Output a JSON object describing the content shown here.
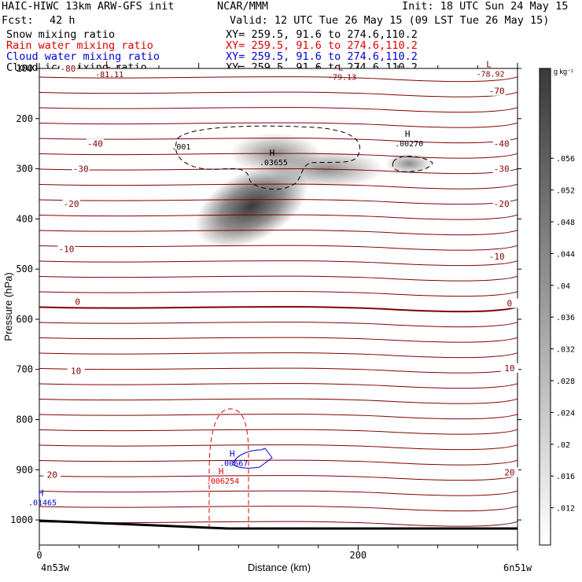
{
  "header": {
    "title_left": "HAIC-HIWC 13km ARW-GFS init",
    "center_tag": "NCAR/MMM",
    "init": "Init: 18 UTC Sun 24 May 15",
    "fcst_label": "Fcst:",
    "fcst_value": "42 h",
    "valid": "Valid: 12 UTC Tue 26 May 15 (09 LST Tue 26 May 15)"
  },
  "fields": [
    {
      "label": "Snow mixing ratio",
      "xy": "XY= 259.5, 91.6 to 274.6,110.2",
      "color": "#000000"
    },
    {
      "label": "Rain water mixing ratio",
      "xy": "XY= 259.5, 91.6 to 274.6,110.2",
      "color": "#e00000"
    },
    {
      "label": "Cloud water mixing ratio",
      "xy": "XY= 259.5, 91.6 to 274.6,110.2",
      "color": "#0000d0"
    },
    {
      "label": "Cloud ice mixing ratio",
      "xy": "XY= 259.5, 91.6 to 274.6,110.2",
      "color": "#000000"
    }
  ],
  "chart_data": {
    "type": "heatmap",
    "xlabel": "Distance (km)",
    "ylabel": "Pressure (hPa)",
    "x_ticks": [
      0,
      200
    ],
    "x_range_km": [
      0,
      300
    ],
    "y_ticks": [
      100,
      200,
      300,
      400,
      500,
      600,
      700,
      800,
      900,
      1000
    ],
    "y_range_hpa": [
      100,
      1050
    ],
    "endpoint_labels": {
      "left": "4n53w",
      "right": "6n51w"
    },
    "colorbar": {
      "unit": "g kg⁻¹",
      "ticks": [
        ".012",
        ".016",
        ".02",
        ".024",
        ".028",
        ".032",
        ".036",
        ".04",
        ".044",
        ".048",
        ".052",
        ".056"
      ],
      "max": 0.06
    },
    "isotherm_labels": [
      {
        "value": "-80",
        "x_km": 18,
        "p_hpa": 100
      },
      {
        "value": "-70",
        "x_km": 287,
        "p_hpa": 145
      },
      {
        "value": "-40",
        "x_km": 35,
        "p_hpa": 250
      },
      {
        "value": "-40",
        "x_km": 290,
        "p_hpa": 250
      },
      {
        "value": "-30",
        "x_km": 26,
        "p_hpa": 300
      },
      {
        "value": "-30",
        "x_km": 290,
        "p_hpa": 300
      },
      {
        "value": "-20",
        "x_km": 20,
        "p_hpa": 370
      },
      {
        "value": "-20",
        "x_km": 290,
        "p_hpa": 370
      },
      {
        "value": "-10",
        "x_km": 17,
        "p_hpa": 460
      },
      {
        "value": "-10",
        "x_km": 287,
        "p_hpa": 475
      },
      {
        "value": "0",
        "x_km": 24,
        "p_hpa": 565
      },
      {
        "value": "0",
        "x_km": 295,
        "p_hpa": 568
      },
      {
        "value": "10",
        "x_km": 23,
        "p_hpa": 703
      },
      {
        "value": "10",
        "x_km": 295,
        "p_hpa": 697
      },
      {
        "value": "20",
        "x_km": 8,
        "p_hpa": 910
      },
      {
        "value": "20",
        "x_km": 295,
        "p_hpa": 905
      }
    ],
    "extrema": [
      {
        "letter": "L",
        "value": "-81.11",
        "x_km": 43,
        "p_hpa": 105,
        "color": "#800000"
      },
      {
        "letter": "L",
        "value": "-79.13",
        "x_km": 189,
        "p_hpa": 110,
        "color": "#800000"
      },
      {
        "letter": "L",
        "value": "-78.92",
        "x_km": 282,
        "p_hpa": 104,
        "color": "#800000"
      },
      {
        "letter": "H",
        "value": ".03655",
        "x_km": 146,
        "p_hpa": 280,
        "color": "#000000"
      },
      {
        "letter": "H",
        "value": ".00270",
        "x_km": 231,
        "p_hpa": 243,
        "color": "#000000"
      },
      {
        "letter": "H",
        "value": ".00667",
        "x_km": 121,
        "p_hpa": 880,
        "color": "#0000d0"
      },
      {
        "letter": "H",
        "value": ".006254",
        "x_km": 114,
        "p_hpa": 915,
        "color": "#e00000"
      },
      {
        "letter": "H",
        "value": ".01465",
        "x_km": 1,
        "p_hpa": 958,
        "color": "#0000d0"
      }
    ],
    "contour_labels": [
      {
        "value": ".001",
        "x_km": 89,
        "p_hpa": 255,
        "color": "#000000"
      }
    ],
    "snow_max_g_kg": 0.056
  }
}
